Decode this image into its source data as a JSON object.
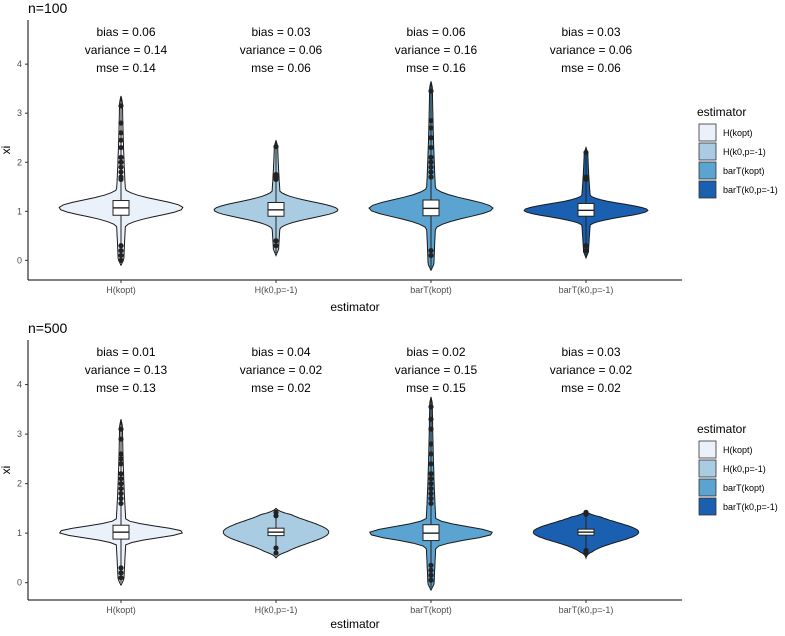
{
  "legend": {
    "title": "estimator",
    "entries": [
      "H(kopt)",
      "H(k0,p=-1)",
      "barT(kopt)",
      "barT(k0,p=-1)"
    ]
  },
  "colors": {
    "fills": [
      "#eaf1fb",
      "#a9cce3",
      "#5ba3d0",
      "#1a5fb0"
    ],
    "outline": "#1a1a1a",
    "points": "#222222"
  },
  "chart_data": [
    {
      "type": "violin",
      "title": "n=100",
      "xlabel": "estimator",
      "ylabel": "xi",
      "ylim": [
        -0.4,
        4.9
      ],
      "yticks": [
        "0",
        "1",
        "2",
        "3",
        "4"
      ],
      "categories": [
        "H(kopt)",
        "H(k0,p=-1)",
        "barT(kopt)",
        "barT(k0,p=-1)"
      ],
      "stats": [
        {
          "bias": "bias = 0.06",
          "variance": "variance = 0.14",
          "mse": "mse = 0.14"
        },
        {
          "bias": "bias = 0.03",
          "variance": "variance = 0.06",
          "mse": "mse = 0.06"
        },
        {
          "bias": "bias = 0.06",
          "variance": "variance = 0.16",
          "mse": "mse = 0.16"
        },
        {
          "bias": "bias = 0.03",
          "variance": "variance = 0.06",
          "mse": "mse = 0.06"
        }
      ],
      "boxes": [
        {
          "q1": 0.92,
          "median": 1.07,
          "q3": 1.22
        },
        {
          "q1": 0.9,
          "median": 1.03,
          "q3": 1.18
        },
        {
          "q1": 0.91,
          "median": 1.06,
          "q3": 1.23
        },
        {
          "q1": 0.9,
          "median": 1.02,
          "q3": 1.16
        }
      ],
      "violins": [
        {
          "min": -0.1,
          "max": 3.35,
          "spread": 0.5
        },
        {
          "min": 0.1,
          "max": 2.45,
          "spread": 0.5
        },
        {
          "min": -0.2,
          "max": 3.65,
          "spread": 0.55
        },
        {
          "min": 0.05,
          "max": 2.3,
          "spread": 0.4
        }
      ],
      "outliers": [
        [
          0.0,
          0.1,
          0.2,
          0.3,
          1.65,
          1.7,
          1.8,
          1.9,
          2.0,
          2.1,
          2.3,
          2.45,
          2.6,
          2.8,
          3.15
        ],
        [
          0.3,
          0.4,
          1.65,
          1.7,
          1.75,
          2.32
        ],
        [
          0.1,
          0.2,
          1.7,
          1.8,
          1.9,
          2.0,
          2.1,
          2.3,
          2.5,
          2.7,
          2.85,
          3.45
        ],
        [
          0.2,
          0.3,
          1.65,
          1.7,
          2.2
        ]
      ]
    },
    {
      "type": "violin",
      "title": "n=500",
      "xlabel": "estimator",
      "ylabel": "xi",
      "ylim": [
        -0.35,
        4.9
      ],
      "yticks": [
        "0",
        "1",
        "2",
        "3",
        "4"
      ],
      "categories": [
        "H(kopt)",
        "H(k0,p=-1)",
        "barT(kopt)",
        "barT(k0,p=-1)"
      ],
      "stats": [
        {
          "bias": "bias = 0.01",
          "variance": "variance = 0.13",
          "mse": "mse = 0.13"
        },
        {
          "bias": "bias = 0.04",
          "variance": "variance = 0.02",
          "mse": "mse = 0.02"
        },
        {
          "bias": "bias = 0.02",
          "variance": "variance = 0.15",
          "mse": "mse = 0.15"
        },
        {
          "bias": "bias = 0.03",
          "variance": "variance = 0.02",
          "mse": "mse = 0.02"
        }
      ],
      "boxes": [
        {
          "q1": 0.88,
          "median": 1.02,
          "q3": 1.16
        },
        {
          "q1": 0.95,
          "median": 1.02,
          "q3": 1.1
        },
        {
          "q1": 0.85,
          "median": 1.0,
          "q3": 1.17
        },
        {
          "q1": 0.96,
          "median": 1.02,
          "q3": 1.08
        }
      ],
      "violins": [
        {
          "min": -0.05,
          "max": 3.3,
          "spread": 0.35
        },
        {
          "min": 0.5,
          "max": 1.5,
          "spread": 0.7
        },
        {
          "min": -0.15,
          "max": 3.75,
          "spread": 0.4
        },
        {
          "min": 0.5,
          "max": 1.45,
          "spread": 0.6
        }
      ],
      "outliers": [
        [
          0.1,
          0.2,
          0.3,
          1.6,
          1.7,
          1.8,
          1.9,
          2.0,
          2.1,
          2.2,
          2.4,
          2.5,
          2.6,
          2.9,
          3.1
        ],
        [
          0.6,
          0.7,
          1.35,
          1.42
        ],
        [
          0.05,
          0.15,
          0.25,
          0.35,
          1.6,
          1.7,
          1.8,
          1.9,
          2.0,
          2.1,
          2.2,
          2.4,
          2.6,
          2.8,
          3.1,
          3.3,
          3.55
        ],
        [
          0.6,
          0.65,
          1.38,
          1.42
        ]
      ]
    }
  ]
}
